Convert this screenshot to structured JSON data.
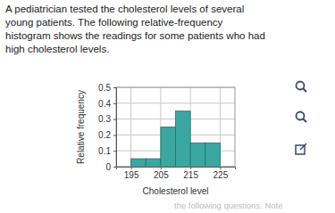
{
  "question": [
    "A pediatrician tested the cholesterol levels of several",
    "young patients. The following relative-frequency",
    "histogram shows the readings for some patients who had",
    "high cholesterol levels."
  ],
  "footer": "the following questions. Note",
  "chart_data": {
    "type": "histogram",
    "xlabel": "Cholesterol level",
    "ylabel": "Relative frequency",
    "bins": [
      195,
      200,
      205,
      210,
      215,
      220,
      225
    ],
    "values": [
      0.05,
      0.05,
      0.25,
      0.35,
      0.15,
      0.15
    ],
    "color": "#3aa8a0",
    "xlim": [
      190,
      230
    ],
    "xticks": [
      195,
      205,
      215,
      225
    ],
    "ylim": [
      0,
      0.5
    ],
    "yticks": [
      0,
      0.1,
      0.2,
      0.3,
      0.4,
      0.5
    ],
    "grid": true
  }
}
